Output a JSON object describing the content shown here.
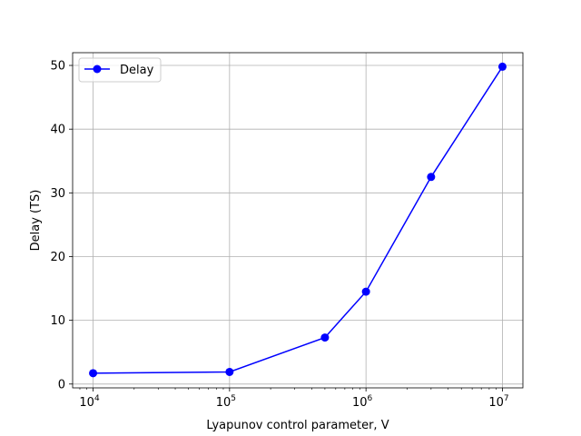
{
  "chart_data": {
    "type": "line",
    "xscale": "log",
    "xlabel": "Lyapunov control parameter, V",
    "ylabel": "Delay (TS)",
    "xlim": [
      7079,
      14125000
    ],
    "ylim": [
      -0.6,
      52
    ],
    "grid": true,
    "legend_position": "top-left",
    "xticks": [
      {
        "value": 10000,
        "base": "10",
        "exp": "4"
      },
      {
        "value": 100000,
        "base": "10",
        "exp": "5"
      },
      {
        "value": 1000000,
        "base": "10",
        "exp": "6"
      },
      {
        "value": 10000000,
        "base": "10",
        "exp": "7"
      }
    ],
    "yticks": [
      0,
      10,
      20,
      30,
      40,
      50
    ],
    "series": [
      {
        "name": "Delay",
        "color": "#0000ff",
        "marker": "circle",
        "x": [
          10000,
          100000,
          500000,
          1000000,
          3000000,
          10000000
        ],
        "y": [
          1.7,
          1.9,
          7.3,
          14.5,
          32.5,
          49.8
        ]
      }
    ]
  }
}
